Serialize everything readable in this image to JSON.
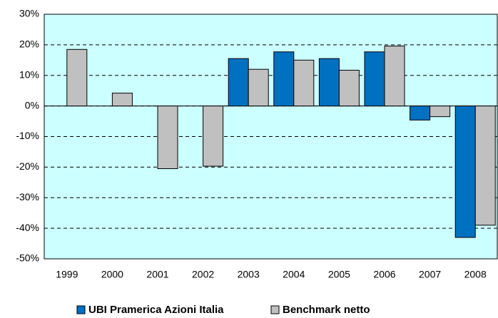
{
  "chart_data": {
    "type": "bar",
    "categories": [
      "1999",
      "2000",
      "2001",
      "2002",
      "2003",
      "2004",
      "2005",
      "2006",
      "2007",
      "2008"
    ],
    "series": [
      {
        "name": "UBI Pramerica Azioni Italia",
        "color": "#0070c0",
        "values": [
          null,
          null,
          null,
          null,
          15.5,
          17.7,
          15.5,
          17.7,
          -4.6,
          -43
        ]
      },
      {
        "name": "Benchmark netto",
        "color": "#c0c0c0",
        "values": [
          18.5,
          4.2,
          -20.5,
          -19.7,
          12,
          15,
          11.7,
          19.6,
          -3.5,
          -39
        ]
      }
    ],
    "ylim": [
      -50,
      30
    ],
    "yticks": [
      {
        "value": -50,
        "label": "-50%"
      },
      {
        "value": -40,
        "label": "-40%"
      },
      {
        "value": -30,
        "label": "-30%"
      },
      {
        "value": -20,
        "label": "-20%"
      },
      {
        "value": -10,
        "label": "-10%"
      },
      {
        "value": 0,
        "label": "0%"
      },
      {
        "value": 10,
        "label": "10%"
      },
      {
        "value": 20,
        "label": "20%"
      },
      {
        "value": 30,
        "label": "30%"
      }
    ],
    "grid": true,
    "plot_background": "#ccffff"
  }
}
